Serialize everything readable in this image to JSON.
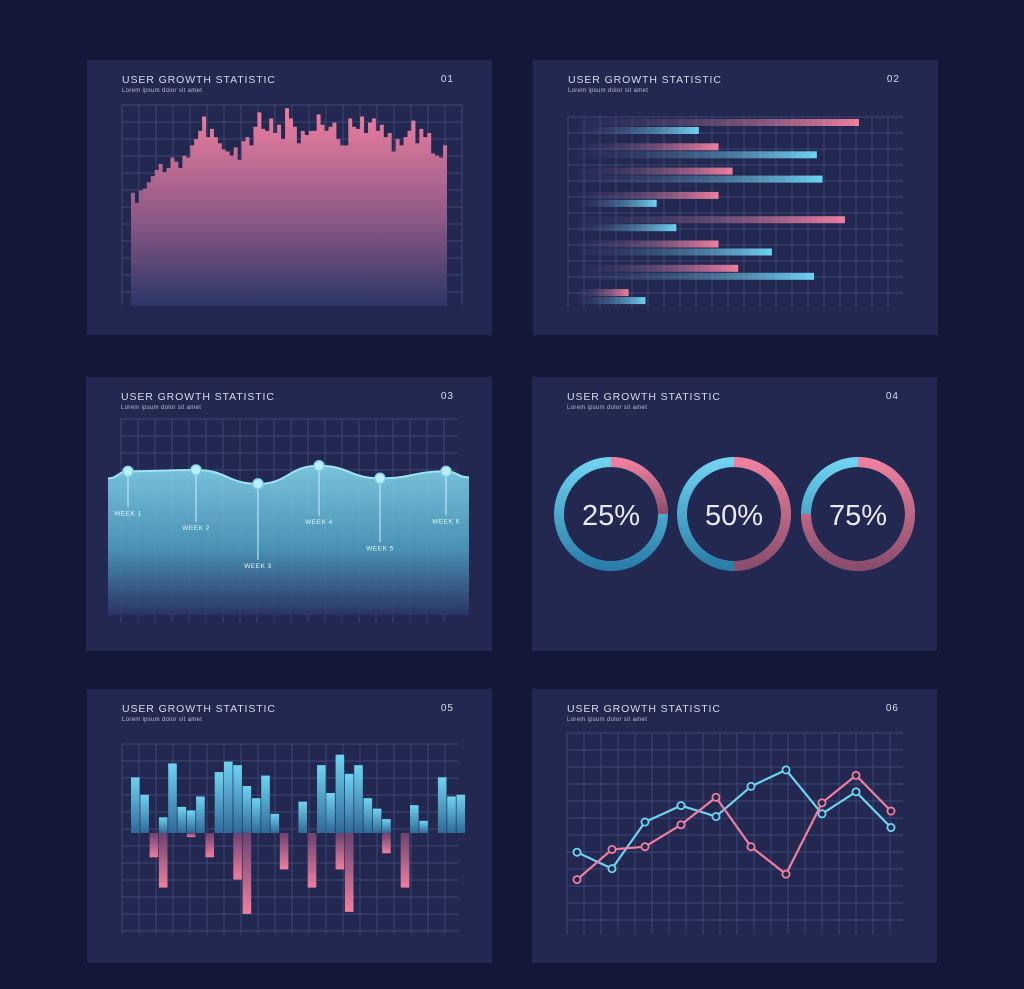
{
  "colors": {
    "pink": "#ef7f9e",
    "blue": "#6fd3f0",
    "grid": "#3e4674",
    "card": "#232851",
    "bg": "#141838"
  },
  "cards": [
    {
      "title": "USER GROWTH STATISTIC",
      "subtitle": "Lorem ipsum dolor sit amet",
      "number": "01"
    },
    {
      "title": "USER GROWTH STATISTIC",
      "subtitle": "Lorem ipsum dolor sit amet",
      "number": "02"
    },
    {
      "title": "USER GROWTH STATISTIC",
      "subtitle": "Lorem ipsum dolor sit amet",
      "number": "03"
    },
    {
      "title": "USER GROWTH STATISTIC",
      "subtitle": "Lorem ipsum dolor sit amet",
      "number": "04"
    },
    {
      "title": "USER GROWTH STATISTIC",
      "subtitle": "Lorem ipsum dolor sit amet",
      "number": "05"
    },
    {
      "title": "USER GROWTH STATISTIC",
      "subtitle": "Lorem ipsum dolor sit amet",
      "number": "06"
    }
  ],
  "chart_data": [
    {
      "type": "area",
      "values": [
        55,
        50,
        56,
        57,
        60,
        63,
        66,
        69,
        65,
        67,
        72,
        70,
        67,
        73,
        72,
        78,
        81,
        85,
        92,
        82,
        86,
        82,
        79,
        76,
        75,
        73,
        77,
        71,
        80,
        82,
        78,
        87,
        94,
        86,
        85,
        91,
        84,
        88,
        81,
        96,
        91,
        87,
        79,
        85,
        83,
        85,
        85,
        93,
        88,
        85,
        87,
        89,
        81,
        78,
        78,
        91,
        87,
        86,
        92,
        84,
        89,
        91,
        85,
        88,
        82,
        84,
        75,
        81,
        78,
        82,
        85,
        90,
        79,
        86,
        82,
        84,
        74,
        73,
        72,
        78
      ],
      "ylim": [
        0,
        100
      ]
    },
    {
      "type": "bar",
      "series": [
        {
          "name": "",
          "values": [
            100,
            50,
            55,
            50,
            95,
            50,
            57,
            18
          ]
        },
        {
          "name": "",
          "values": [
            43,
            85,
            87,
            28,
            35,
            69,
            84,
            24
          ]
        }
      ],
      "xlim": [
        0,
        100
      ]
    },
    {
      "type": "area",
      "categories": [
        "WEEK 1",
        "WEEK 2",
        "WEEK 3",
        "WEEK 4",
        "WEEK 5",
        "WEEK 6"
      ],
      "values": [
        82,
        83,
        73,
        86,
        77,
        82
      ],
      "ylim": [
        0,
        100
      ]
    },
    {
      "type": "pie",
      "items": [
        {
          "label": "25%",
          "value": 25
        },
        {
          "label": "50%",
          "value": 50
        },
        {
          "label": "75%",
          "value": 75
        }
      ]
    },
    {
      "type": "bar",
      "series": [
        {
          "name": "",
          "values": [
            32,
            22,
            0,
            9,
            40,
            15,
            13,
            21,
            0,
            35,
            41,
            39,
            27,
            20,
            33,
            11,
            0,
            0,
            18,
            0,
            39,
            23,
            45,
            34,
            39,
            20,
            14,
            8,
            0,
            0,
            16,
            7,
            0,
            32,
            21,
            22
          ]
        },
        {
          "name": "",
          "values": [
            0,
            0,
            -12,
            -27,
            0,
            0,
            -2,
            0,
            -12,
            0,
            0,
            -23,
            -40,
            0,
            0,
            0,
            -18,
            0,
            0,
            -27,
            0,
            0,
            -18,
            -39,
            0,
            0,
            0,
            -10,
            0,
            -27,
            0,
            0,
            0,
            0,
            0,
            0
          ]
        }
      ],
      "ylim": [
        -45,
        50
      ]
    },
    {
      "type": "line",
      "series": [
        {
          "name": "",
          "values": [
            3,
            -3,
            14,
            20,
            16,
            27,
            33,
            17,
            25,
            12
          ]
        },
        {
          "name": "",
          "values": [
            -7,
            4,
            5,
            13,
            23,
            5,
            -5,
            21,
            31,
            18
          ]
        }
      ],
      "ylim": [
        -25,
        45
      ]
    }
  ]
}
